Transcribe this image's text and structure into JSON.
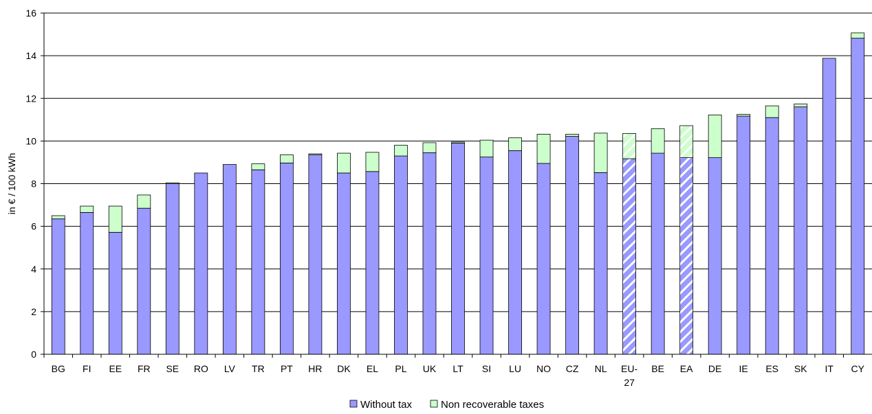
{
  "chart_data": {
    "type": "bar",
    "stacked": true,
    "ylabel": "in € / 100 kWh",
    "ylim": [
      0,
      16
    ],
    "yticks": [
      0,
      2,
      4,
      6,
      8,
      10,
      12,
      14,
      16
    ],
    "grid": true,
    "legend_position": "bottom",
    "categories": [
      "BG",
      "FI",
      "EE",
      "FR",
      "SE",
      "RO",
      "LV",
      "TR",
      "PT",
      "HR",
      "DK",
      "EL",
      "PL",
      "UK",
      "LT",
      "SI",
      "LU",
      "NO",
      "CZ",
      "NL",
      "EU-27",
      "BE",
      "EA",
      "DE",
      "IE",
      "ES",
      "SK",
      "IT",
      "CY"
    ],
    "hatched_categories": [
      "EU-27",
      "EA"
    ],
    "series": [
      {
        "name": "Without tax",
        "color": "#9999ff",
        "values": [
          6.35,
          6.65,
          5.72,
          6.85,
          8.0,
          8.5,
          8.9,
          8.65,
          8.97,
          9.35,
          8.5,
          8.57,
          9.3,
          9.45,
          9.9,
          9.25,
          9.55,
          8.95,
          10.22,
          8.52,
          9.17,
          9.43,
          9.22,
          9.22,
          11.17,
          11.1,
          11.6,
          13.88,
          14.82
        ]
      },
      {
        "name": "Non recoverable taxes",
        "color": "#ccffcc",
        "values": [
          0.15,
          0.3,
          1.23,
          0.62,
          0.04,
          0.0,
          0.0,
          0.28,
          0.38,
          0.05,
          0.93,
          0.9,
          0.5,
          0.47,
          0.05,
          0.79,
          0.6,
          1.37,
          0.1,
          1.85,
          1.18,
          1.15,
          1.5,
          2.0,
          0.08,
          0.55,
          0.14,
          0.0,
          0.25
        ]
      }
    ]
  }
}
